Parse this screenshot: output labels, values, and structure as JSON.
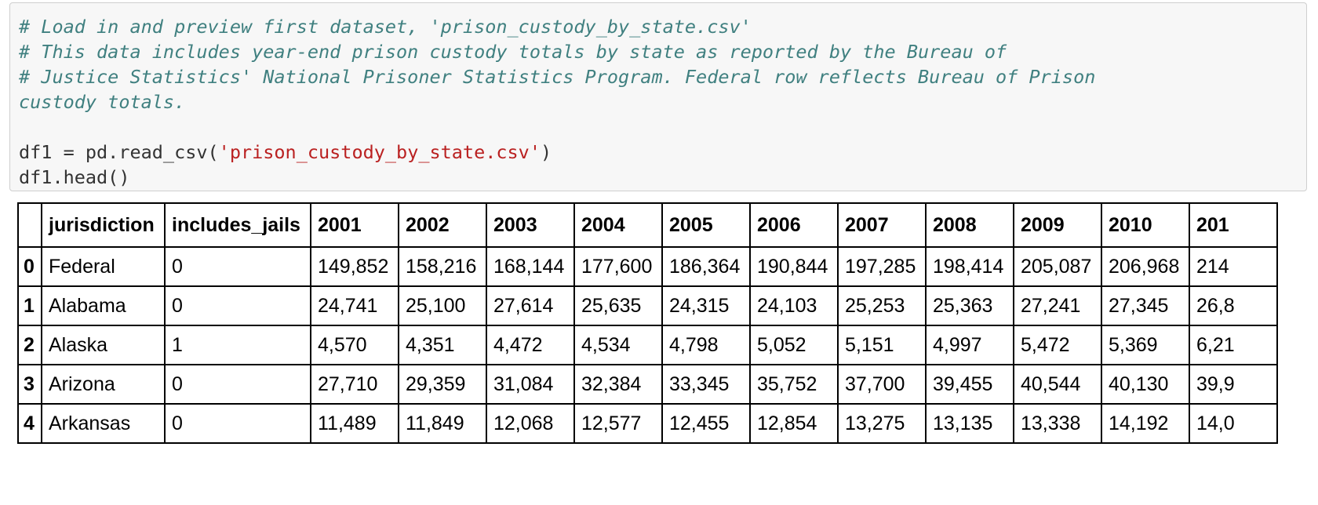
{
  "code_cell": {
    "lines": [
      {
        "type": "comment",
        "text": "# Load in and preview first dataset, 'prison_custody_by_state.csv'"
      },
      {
        "type": "comment",
        "text": "# This data includes year-end prison custody totals by state as reported by the Bureau of"
      },
      {
        "type": "comment",
        "text": "# Justice Statistics' National Prisoner Statistics Program. Federal row reflects Bureau of Prison"
      },
      {
        "type": "comment",
        "text": "custody totals."
      },
      {
        "type": "blank",
        "text": ""
      },
      {
        "type": "code",
        "prefix": "df1 = pd.read_csv(",
        "string": "'prison_custody_by_state.csv'",
        "suffix": ")"
      },
      {
        "type": "plain",
        "text": "df1.head()"
      }
    ]
  },
  "table": {
    "columns": [
      "",
      "jurisdiction",
      "includes_jails",
      "2001",
      "2002",
      "2003",
      "2004",
      "2005",
      "2006",
      "2007",
      "2008",
      "2009",
      "2010",
      "201"
    ],
    "rows": [
      {
        "index": "0",
        "cells": [
          "Federal",
          "0",
          "149,852",
          "158,216",
          "168,144",
          "177,600",
          "186,364",
          "190,844",
          "197,285",
          "198,414",
          "205,087",
          "206,968",
          "214"
        ]
      },
      {
        "index": "1",
        "cells": [
          "Alabama",
          "0",
          "24,741",
          "25,100",
          "27,614",
          "25,635",
          "24,315",
          "24,103",
          "25,253",
          "25,363",
          "27,241",
          "27,345",
          "26,8"
        ]
      },
      {
        "index": "2",
        "cells": [
          "Alaska",
          "1",
          "4,570",
          "4,351",
          "4,472",
          "4,534",
          "4,798",
          "5,052",
          "5,151",
          "4,997",
          "5,472",
          "5,369",
          "6,21"
        ]
      },
      {
        "index": "3",
        "cells": [
          "Arizona",
          "0",
          "27,710",
          "29,359",
          "31,084",
          "32,384",
          "33,345",
          "35,752",
          "37,700",
          "39,455",
          "40,544",
          "40,130",
          "39,9"
        ]
      },
      {
        "index": "4",
        "cells": [
          "Arkansas",
          "0",
          "11,489",
          "11,849",
          "12,068",
          "12,577",
          "12,455",
          "12,854",
          "13,275",
          "13,135",
          "13,338",
          "14,192",
          "14,0"
        ]
      }
    ]
  },
  "colors": {
    "comment": "#408080",
    "string": "#ba2121",
    "code": "#333333",
    "cell_background": "#f7f7f7",
    "cell_border": "#cfcfcf"
  }
}
